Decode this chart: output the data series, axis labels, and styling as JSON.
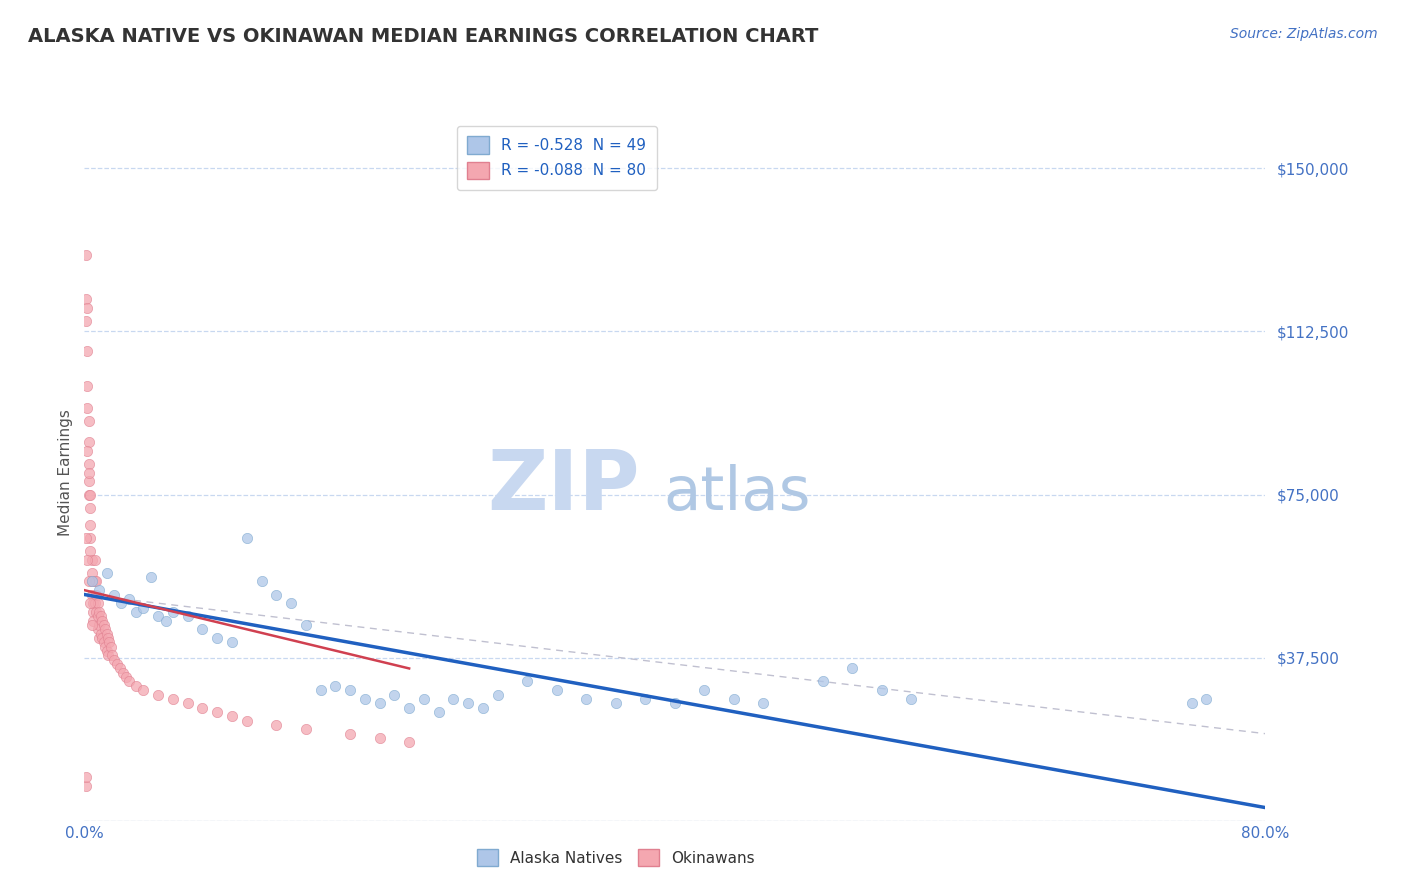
{
  "title": "ALASKA NATIVE VS OKINAWAN MEDIAN EARNINGS CORRELATION CHART",
  "source": "Source: ZipAtlas.com",
  "ylabel": "Median Earnings",
  "xlim": [
    0.0,
    0.8
  ],
  "ylim": [
    0,
    160000
  ],
  "yticks": [
    0,
    37500,
    75000,
    112500,
    150000
  ],
  "ytick_labels": [
    "",
    "$37,500",
    "$75,000",
    "$112,500",
    "$150,000"
  ],
  "xticks": [
    0.0,
    0.2,
    0.4,
    0.6,
    0.8
  ],
  "xtick_labels": [
    "0.0%",
    "",
    "",
    "",
    "80.0%"
  ],
  "title_color": "#333333",
  "title_fontsize": 14,
  "source_color": "#4472c4",
  "source_fontsize": 10,
  "watermark_zip": "ZIP",
  "watermark_atlas": "atlas",
  "watermark_color_zip": "#c8d8f0",
  "watermark_color_atlas": "#a0b8d8",
  "legend_r1": "R = -0.528  N = 49",
  "legend_r2": "R = -0.088  N = 80",
  "legend_label1": "Alaska Natives",
  "legend_label2": "Okinawans",
  "scatter_blue_color": "#aec6e8",
  "scatter_blue_edge": "#80aad0",
  "scatter_pink_color": "#f4a7b0",
  "scatter_pink_edge": "#e08090",
  "line_blue_color": "#2060c0",
  "line_pink_color": "#d04050",
  "line_dashed_color": "#c0c0d0",
  "background_color": "#ffffff",
  "grid_color": "#c8d8f0",
  "blue_scatter_x": [
    0.005,
    0.01,
    0.015,
    0.02,
    0.025,
    0.03,
    0.035,
    0.04,
    0.045,
    0.05,
    0.055,
    0.06,
    0.07,
    0.08,
    0.09,
    0.1,
    0.11,
    0.12,
    0.13,
    0.14,
    0.15,
    0.16,
    0.17,
    0.18,
    0.19,
    0.2,
    0.21,
    0.22,
    0.23,
    0.24,
    0.25,
    0.26,
    0.27,
    0.28,
    0.3,
    0.32,
    0.34,
    0.36,
    0.38,
    0.4,
    0.42,
    0.44,
    0.46,
    0.5,
    0.52,
    0.54,
    0.56,
    0.75,
    0.76
  ],
  "blue_scatter_y": [
    55000,
    53000,
    57000,
    52000,
    50000,
    51000,
    48000,
    49000,
    56000,
    47000,
    46000,
    48000,
    47000,
    44000,
    42000,
    41000,
    65000,
    55000,
    52000,
    50000,
    45000,
    30000,
    31000,
    30000,
    28000,
    27000,
    29000,
    26000,
    28000,
    25000,
    28000,
    27000,
    26000,
    29000,
    32000,
    30000,
    28000,
    27000,
    28000,
    27000,
    30000,
    28000,
    27000,
    32000,
    35000,
    30000,
    28000,
    27000,
    28000
  ],
  "pink_scatter_x": [
    0.001,
    0.001,
    0.001,
    0.002,
    0.002,
    0.002,
    0.002,
    0.003,
    0.003,
    0.003,
    0.003,
    0.003,
    0.004,
    0.004,
    0.004,
    0.004,
    0.005,
    0.005,
    0.005,
    0.005,
    0.006,
    0.006,
    0.006,
    0.007,
    0.007,
    0.007,
    0.008,
    0.008,
    0.008,
    0.009,
    0.009,
    0.009,
    0.01,
    0.01,
    0.01,
    0.011,
    0.011,
    0.012,
    0.012,
    0.013,
    0.013,
    0.014,
    0.014,
    0.015,
    0.015,
    0.016,
    0.016,
    0.017,
    0.018,
    0.019,
    0.02,
    0.022,
    0.024,
    0.026,
    0.028,
    0.03,
    0.035,
    0.04,
    0.05,
    0.06,
    0.07,
    0.08,
    0.09,
    0.1,
    0.11,
    0.13,
    0.15,
    0.18,
    0.2,
    0.22,
    0.002,
    0.003,
    0.004,
    0.001,
    0.002,
    0.003,
    0.004,
    0.005,
    0.001,
    0.001
  ],
  "pink_scatter_y": [
    130000,
    120000,
    115000,
    118000,
    108000,
    100000,
    95000,
    92000,
    87000,
    82000,
    78000,
    75000,
    72000,
    68000,
    65000,
    62000,
    60000,
    57000,
    55000,
    52000,
    50000,
    48000,
    46000,
    60000,
    55000,
    50000,
    55000,
    52000,
    48000,
    50000,
    47000,
    44000,
    48000,
    45000,
    42000,
    47000,
    43000,
    46000,
    42000,
    45000,
    41000,
    44000,
    40000,
    43000,
    39000,
    42000,
    38000,
    41000,
    40000,
    38000,
    37000,
    36000,
    35000,
    34000,
    33000,
    32000,
    31000,
    30000,
    29000,
    28000,
    27000,
    26000,
    25000,
    24000,
    23000,
    22000,
    21000,
    20000,
    19000,
    18000,
    85000,
    80000,
    75000,
    65000,
    60000,
    55000,
    50000,
    45000,
    8000,
    10000
  ],
  "blue_line_x": [
    0.0,
    0.8
  ],
  "blue_line_y": [
    52000,
    3000
  ],
  "pink_line_x": [
    0.0,
    0.22
  ],
  "pink_line_y": [
    53000,
    35000
  ],
  "dashed_line_x": [
    0.0,
    0.8
  ],
  "dashed_line_y": [
    52000,
    20000
  ]
}
